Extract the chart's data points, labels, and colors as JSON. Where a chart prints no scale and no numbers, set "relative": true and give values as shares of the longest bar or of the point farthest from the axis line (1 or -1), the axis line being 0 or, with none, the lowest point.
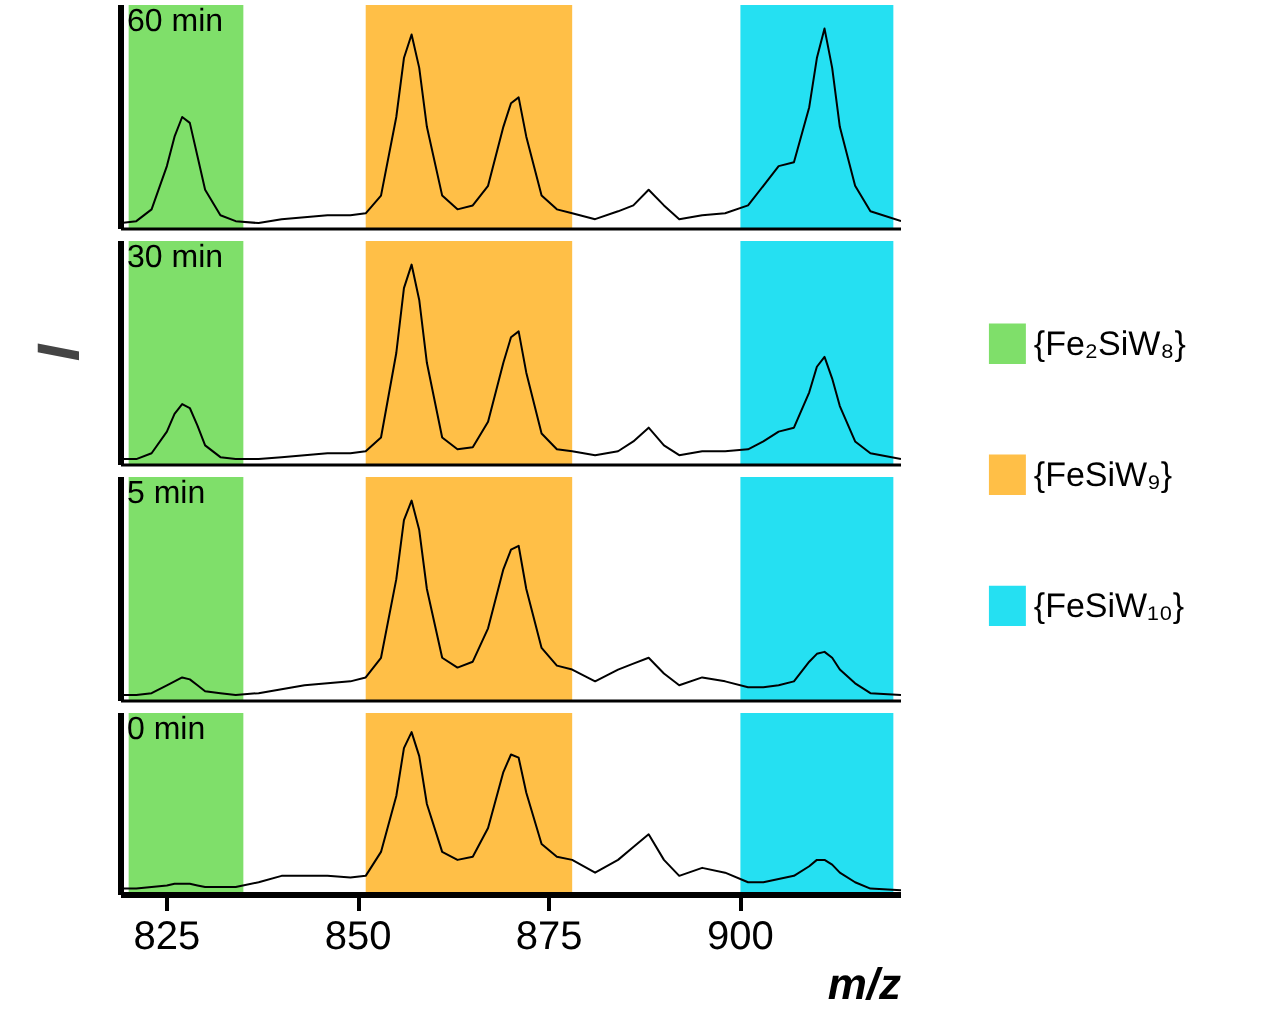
{
  "chart_data": [
    {
      "type": "line",
      "title": "60 min",
      "relative": true,
      "tick_labels": false,
      "legend": "right",
      "xlim": [
        819,
        921
      ],
      "x": [
        819,
        821,
        823,
        825,
        826,
        827,
        828,
        829,
        830,
        832,
        834,
        837,
        840,
        843,
        846,
        849,
        851,
        853,
        855,
        856,
        857,
        858,
        859,
        861,
        863,
        865,
        867,
        869,
        870,
        871,
        872,
        874,
        876,
        878,
        881,
        884,
        886,
        888,
        890,
        892,
        895,
        898,
        901,
        903,
        905,
        907,
        909,
        910,
        911,
        912,
        913,
        915,
        917,
        921
      ],
      "series": [
        {
          "color": "#000000",
          "values": [
            0.01,
            0.02,
            0.08,
            0.3,
            0.45,
            0.55,
            0.52,
            0.35,
            0.18,
            0.05,
            0.02,
            0.01,
            0.03,
            0.04,
            0.05,
            0.05,
            0.06,
            0.15,
            0.55,
            0.85,
            0.97,
            0.8,
            0.5,
            0.15,
            0.08,
            0.1,
            0.2,
            0.5,
            0.62,
            0.65,
            0.45,
            0.15,
            0.08,
            0.06,
            0.03,
            0.07,
            0.1,
            0.18,
            0.1,
            0.03,
            0.05,
            0.06,
            0.1,
            0.2,
            0.3,
            0.32,
            0.6,
            0.85,
            1.0,
            0.8,
            0.5,
            0.2,
            0.07,
            0.02
          ]
        }
      ],
      "bands": [
        {
          "axis": "x",
          "from": 820,
          "to": 835,
          "label": "{Fe₂SiW₈}",
          "color": "#7fdf6a"
        },
        {
          "axis": "x",
          "from": 851,
          "to": 878,
          "label": "{FeSiW₉}",
          "color": "#ffbf47"
        },
        {
          "axis": "x",
          "from": 900,
          "to": 920,
          "label": "{FeSiW₁₀}",
          "color": "#25e0f2"
        }
      ]
    },
    {
      "type": "line",
      "title": "30 min",
      "ylabel": "I",
      "relative": true,
      "tick_labels": false,
      "xlim": [
        819,
        921
      ],
      "x": [
        819,
        821,
        823,
        825,
        826,
        827,
        828,
        829,
        830,
        832,
        834,
        837,
        840,
        843,
        846,
        849,
        851,
        853,
        855,
        856,
        857,
        858,
        859,
        861,
        863,
        865,
        867,
        869,
        870,
        871,
        872,
        874,
        876,
        878,
        881,
        884,
        886,
        888,
        890,
        892,
        895,
        898,
        901,
        903,
        905,
        907,
        909,
        910,
        911,
        912,
        913,
        915,
        917,
        921
      ],
      "series": [
        {
          "color": "#000000",
          "values": [
            0.01,
            0.01,
            0.04,
            0.15,
            0.24,
            0.29,
            0.27,
            0.18,
            0.08,
            0.02,
            0.01,
            0.01,
            0.02,
            0.03,
            0.04,
            0.04,
            0.05,
            0.12,
            0.55,
            0.88,
            1.0,
            0.82,
            0.5,
            0.12,
            0.06,
            0.07,
            0.2,
            0.5,
            0.63,
            0.66,
            0.45,
            0.14,
            0.06,
            0.05,
            0.03,
            0.05,
            0.1,
            0.17,
            0.08,
            0.03,
            0.05,
            0.05,
            0.06,
            0.1,
            0.15,
            0.17,
            0.35,
            0.48,
            0.53,
            0.42,
            0.28,
            0.1,
            0.04,
            0.01
          ]
        }
      ],
      "bands": [
        {
          "axis": "x",
          "from": 820,
          "to": 835,
          "color": "#7fdf6a"
        },
        {
          "axis": "x",
          "from": 851,
          "to": 878,
          "color": "#ffbf47"
        },
        {
          "axis": "x",
          "from": 900,
          "to": 920,
          "color": "#25e0f2"
        }
      ]
    },
    {
      "type": "line",
      "title": "5 min",
      "relative": true,
      "tick_labels": false,
      "xlim": [
        819,
        921
      ],
      "x": [
        819,
        821,
        823,
        825,
        826,
        827,
        828,
        829,
        830,
        832,
        834,
        837,
        840,
        843,
        846,
        849,
        851,
        853,
        855,
        856,
        857,
        858,
        859,
        861,
        863,
        865,
        867,
        869,
        870,
        871,
        872,
        874,
        876,
        878,
        881,
        884,
        886,
        888,
        890,
        892,
        895,
        898,
        901,
        903,
        905,
        907,
        909,
        910,
        911,
        912,
        913,
        915,
        917,
        921
      ],
      "series": [
        {
          "color": "#000000",
          "values": [
            0.01,
            0.01,
            0.02,
            0.06,
            0.08,
            0.1,
            0.09,
            0.06,
            0.03,
            0.02,
            0.01,
            0.02,
            0.04,
            0.06,
            0.07,
            0.08,
            0.1,
            0.2,
            0.6,
            0.9,
            1.0,
            0.85,
            0.55,
            0.2,
            0.15,
            0.18,
            0.35,
            0.65,
            0.75,
            0.77,
            0.55,
            0.25,
            0.16,
            0.14,
            0.08,
            0.14,
            0.17,
            0.2,
            0.12,
            0.06,
            0.1,
            0.08,
            0.05,
            0.05,
            0.06,
            0.08,
            0.18,
            0.22,
            0.23,
            0.2,
            0.14,
            0.07,
            0.02,
            0.01
          ]
        }
      ],
      "bands": [
        {
          "axis": "x",
          "from": 820,
          "to": 835,
          "color": "#7fdf6a"
        },
        {
          "axis": "x",
          "from": 851,
          "to": 878,
          "color": "#ffbf47"
        },
        {
          "axis": "x",
          "from": 900,
          "to": 920,
          "color": "#25e0f2"
        }
      ]
    },
    {
      "type": "line",
      "title": "0 min",
      "xlabel": "m/z",
      "relative": true,
      "tick_labels": "x",
      "xlim": [
        819,
        921
      ],
      "xticks": [
        825,
        850,
        875,
        900
      ],
      "x": [
        819,
        821,
        823,
        825,
        826,
        827,
        828,
        829,
        830,
        832,
        834,
        837,
        840,
        843,
        846,
        849,
        851,
        853,
        855,
        856,
        857,
        858,
        859,
        861,
        863,
        865,
        867,
        869,
        870,
        871,
        872,
        874,
        876,
        878,
        881,
        884,
        886,
        888,
        890,
        892,
        895,
        898,
        901,
        903,
        905,
        907,
        909,
        910,
        911,
        912,
        913,
        915,
        917,
        921
      ],
      "series": [
        {
          "color": "#000000",
          "values": [
            0.02,
            0.02,
            0.03,
            0.04,
            0.05,
            0.05,
            0.05,
            0.04,
            0.03,
            0.03,
            0.03,
            0.06,
            0.1,
            0.1,
            0.1,
            0.09,
            0.1,
            0.25,
            0.6,
            0.9,
            1.0,
            0.85,
            0.55,
            0.25,
            0.2,
            0.22,
            0.4,
            0.75,
            0.86,
            0.84,
            0.62,
            0.3,
            0.22,
            0.2,
            0.12,
            0.2,
            0.28,
            0.36,
            0.2,
            0.1,
            0.15,
            0.12,
            0.06,
            0.06,
            0.08,
            0.1,
            0.16,
            0.2,
            0.2,
            0.17,
            0.12,
            0.06,
            0.02,
            0.01
          ]
        }
      ],
      "bands": [
        {
          "axis": "x",
          "from": 820,
          "to": 835,
          "color": "#7fdf6a"
        },
        {
          "axis": "x",
          "from": 851,
          "to": 878,
          "color": "#ffbf47"
        },
        {
          "axis": "x",
          "from": 900,
          "to": 920,
          "color": "#25e0f2"
        }
      ]
    }
  ]
}
